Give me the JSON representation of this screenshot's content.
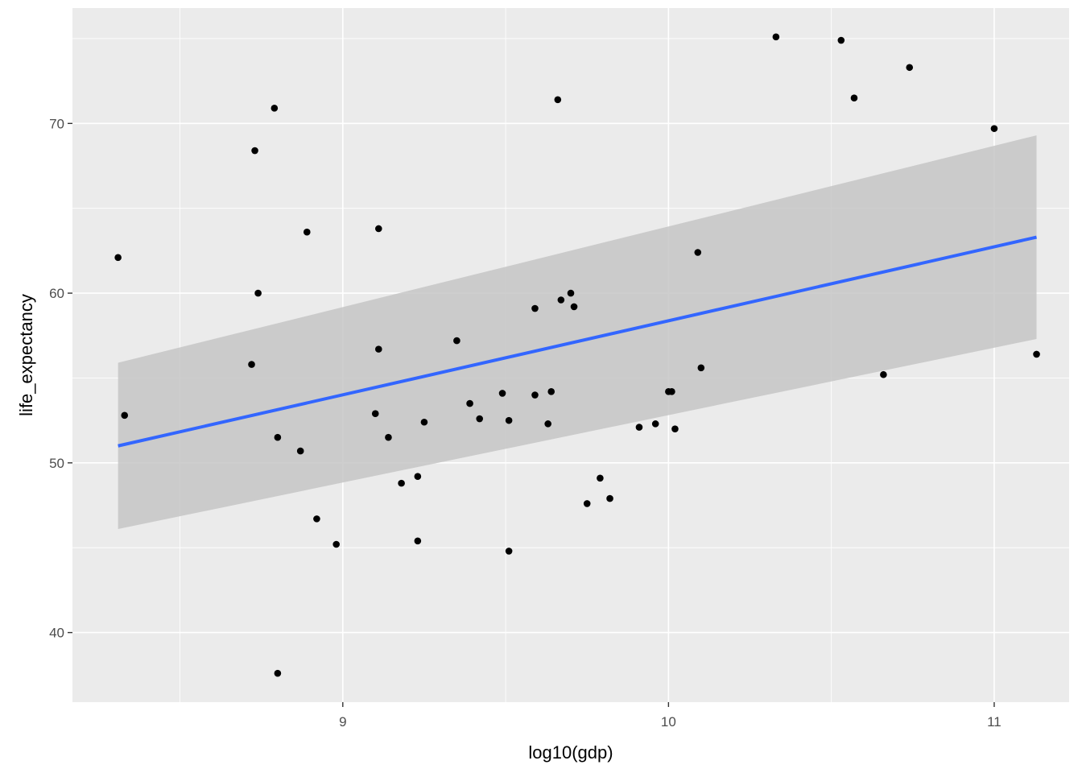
{
  "chart_data": {
    "type": "scatter",
    "title": "",
    "xlabel": "log10(gdp)",
    "ylabel": "life_expectancy",
    "xlim": [
      8.17,
      11.23
    ],
    "ylim": [
      35.9,
      76.8
    ],
    "x_ticks": [
      9,
      10,
      11
    ],
    "x_minor_ticks": [
      8.5,
      9.5,
      10.5
    ],
    "y_ticks": [
      40,
      50,
      60,
      70
    ],
    "y_minor_ticks": [
      45,
      55,
      65,
      75
    ],
    "grid": true,
    "colors": {
      "panel_background": "#ebebeb",
      "grid_line": "#ffffff",
      "point": "#000000",
      "smooth_line": "#3366ff",
      "confidence_band": "#c6c6c6"
    },
    "points": [
      {
        "x": 8.31,
        "y": 62.1
      },
      {
        "x": 8.33,
        "y": 52.8
      },
      {
        "x": 8.72,
        "y": 55.8
      },
      {
        "x": 8.73,
        "y": 68.4
      },
      {
        "x": 8.74,
        "y": 60.0
      },
      {
        "x": 8.79,
        "y": 70.9
      },
      {
        "x": 8.8,
        "y": 51.5
      },
      {
        "x": 8.8,
        "y": 37.6
      },
      {
        "x": 8.87,
        "y": 50.7
      },
      {
        "x": 8.89,
        "y": 63.6
      },
      {
        "x": 8.92,
        "y": 46.7
      },
      {
        "x": 8.98,
        "y": 45.2
      },
      {
        "x": 9.1,
        "y": 52.9
      },
      {
        "x": 9.11,
        "y": 63.8
      },
      {
        "x": 9.11,
        "y": 56.7
      },
      {
        "x": 9.14,
        "y": 51.5
      },
      {
        "x": 9.18,
        "y": 48.8
      },
      {
        "x": 9.23,
        "y": 49.2
      },
      {
        "x": 9.23,
        "y": 45.4
      },
      {
        "x": 9.25,
        "y": 52.4
      },
      {
        "x": 9.35,
        "y": 57.2
      },
      {
        "x": 9.39,
        "y": 53.5
      },
      {
        "x": 9.42,
        "y": 52.6
      },
      {
        "x": 9.49,
        "y": 54.1
      },
      {
        "x": 9.51,
        "y": 52.5
      },
      {
        "x": 9.51,
        "y": 44.8
      },
      {
        "x": 9.59,
        "y": 59.1
      },
      {
        "x": 9.59,
        "y": 54.0
      },
      {
        "x": 9.63,
        "y": 52.3
      },
      {
        "x": 9.64,
        "y": 54.2
      },
      {
        "x": 9.66,
        "y": 71.4
      },
      {
        "x": 9.67,
        "y": 59.6
      },
      {
        "x": 9.7,
        "y": 60.0
      },
      {
        "x": 9.71,
        "y": 59.2
      },
      {
        "x": 9.75,
        "y": 47.6
      },
      {
        "x": 9.79,
        "y": 49.1
      },
      {
        "x": 9.82,
        "y": 47.9
      },
      {
        "x": 9.91,
        "y": 52.1
      },
      {
        "x": 9.96,
        "y": 52.3
      },
      {
        "x": 10.0,
        "y": 54.2
      },
      {
        "x": 10.01,
        "y": 54.2
      },
      {
        "x": 10.02,
        "y": 52.0
      },
      {
        "x": 10.09,
        "y": 62.4
      },
      {
        "x": 10.1,
        "y": 55.6
      },
      {
        "x": 10.33,
        "y": 75.1
      },
      {
        "x": 10.53,
        "y": 74.9
      },
      {
        "x": 10.57,
        "y": 71.5
      },
      {
        "x": 10.66,
        "y": 55.2
      },
      {
        "x": 10.74,
        "y": 73.3
      },
      {
        "x": 11.0,
        "y": 69.7
      },
      {
        "x": 11.13,
        "y": 56.4
      }
    ],
    "smooth": {
      "method": "linear",
      "x": [
        8.31,
        11.13
      ],
      "y": [
        51.0,
        63.3
      ],
      "ci_lower": [
        46.1,
        57.3
      ],
      "ci_upper": [
        55.9,
        69.3
      ]
    }
  }
}
